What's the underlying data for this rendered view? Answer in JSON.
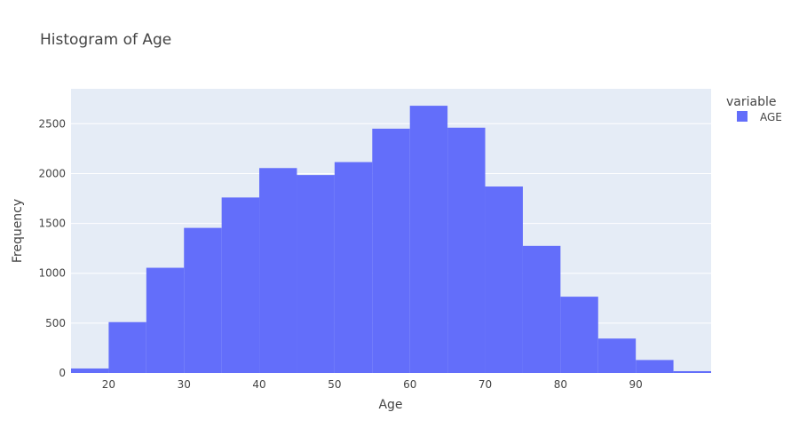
{
  "chart_data": {
    "type": "bar",
    "title": "Histogram of Age",
    "xlabel": "Age",
    "ylabel": "Frequency",
    "xlim": [
      15,
      100
    ],
    "ylim": [
      0,
      2850
    ],
    "x_ticks": [
      20,
      30,
      40,
      50,
      60,
      70,
      80,
      90
    ],
    "y_ticks": [
      0,
      500,
      1000,
      1500,
      2000,
      2500
    ],
    "bin_width": 5,
    "bins": [
      {
        "start": 15,
        "end": 20,
        "count": 45
      },
      {
        "start": 20,
        "end": 25,
        "count": 510
      },
      {
        "start": 25,
        "end": 30,
        "count": 1055
      },
      {
        "start": 30,
        "end": 35,
        "count": 1455
      },
      {
        "start": 35,
        "end": 40,
        "count": 1760
      },
      {
        "start": 40,
        "end": 45,
        "count": 2055
      },
      {
        "start": 45,
        "end": 50,
        "count": 1985
      },
      {
        "start": 50,
        "end": 55,
        "count": 2115
      },
      {
        "start": 55,
        "end": 60,
        "count": 2450
      },
      {
        "start": 60,
        "end": 65,
        "count": 2680
      },
      {
        "start": 65,
        "end": 70,
        "count": 2460
      },
      {
        "start": 70,
        "end": 75,
        "count": 1870
      },
      {
        "start": 75,
        "end": 80,
        "count": 1275
      },
      {
        "start": 80,
        "end": 85,
        "count": 765
      },
      {
        "start": 85,
        "end": 90,
        "count": 345
      },
      {
        "start": 90,
        "end": 95,
        "count": 130
      },
      {
        "start": 95,
        "end": 100,
        "count": 18
      }
    ],
    "series": [
      {
        "name": "AGE",
        "color": "#636efa"
      }
    ],
    "legend": {
      "title": "variable",
      "placement": "top-right"
    },
    "grid": true,
    "plot_background": "#e5ecf6",
    "gridline_color": "#ffffff"
  }
}
